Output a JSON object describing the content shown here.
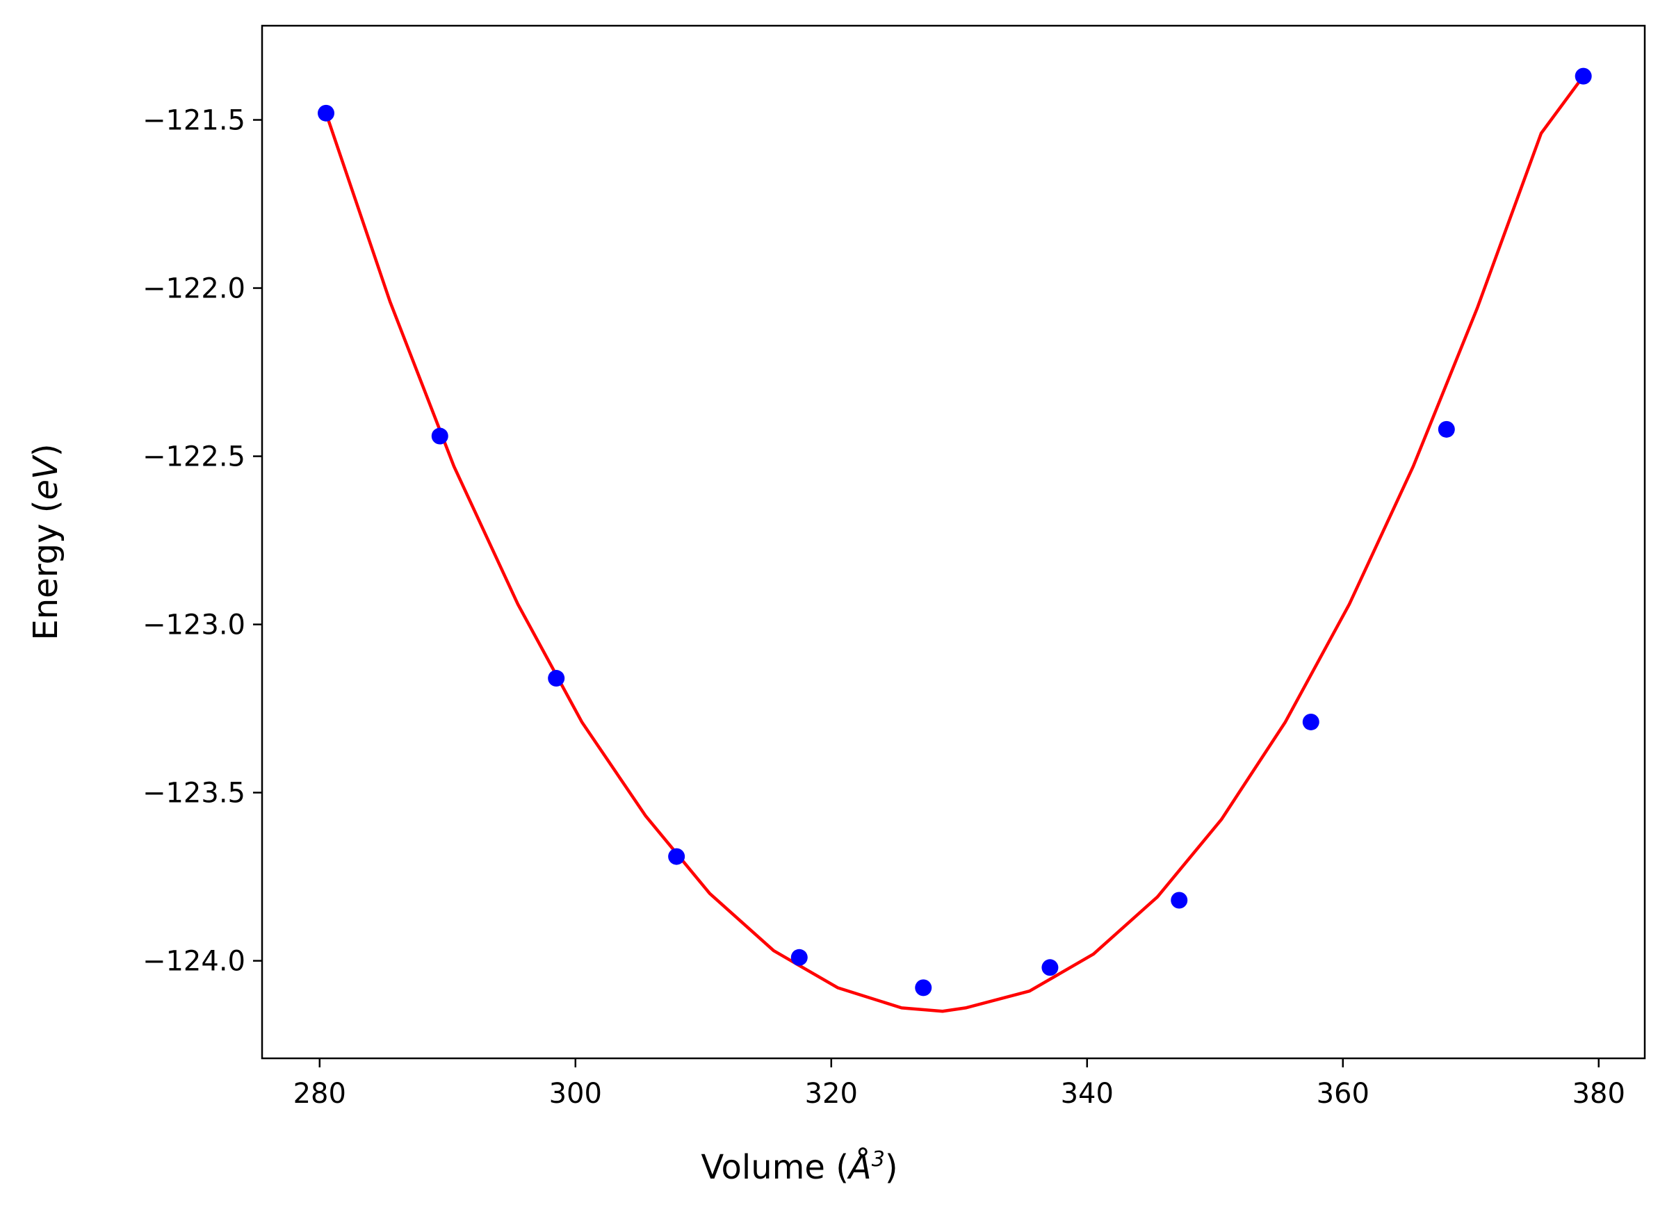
{
  "chart_data": {
    "type": "scatter",
    "title": "",
    "xlabel_parts": {
      "prefix": "Volume (",
      "symbol": "Å",
      "exponent": "3",
      "suffix": ")"
    },
    "ylabel_parts": {
      "prefix": "Energy (",
      "symbol": "eV",
      "suffix": ")"
    },
    "xlim": [
      275.5,
      383.6
    ],
    "ylim": [
      -124.29,
      -121.22
    ],
    "xticks": [
      280,
      300,
      320,
      340,
      360,
      380
    ],
    "xtick_labels": [
      "280",
      "300",
      "320",
      "340",
      "360",
      "380"
    ],
    "yticks": [
      -121.5,
      -122.0,
      -122.5,
      -123.0,
      -123.5,
      -124.0
    ],
    "ytick_labels": [
      "−121.5",
      "−122.0",
      "−122.5",
      "−123.0",
      "−123.5",
      "−124.0"
    ],
    "grid": false,
    "series": [
      {
        "kind": "points",
        "color": "#0000ff",
        "x": [
          280.5,
          289.4,
          298.5,
          307.9,
          317.5,
          327.2,
          337.1,
          347.2,
          357.5,
          368.1,
          378.8
        ],
        "y": [
          -121.48,
          -122.44,
          -123.16,
          -123.69,
          -123.99,
          -124.08,
          -124.02,
          -123.82,
          -123.29,
          -122.42,
          -121.37
        ]
      },
      {
        "kind": "fit-line",
        "color": "#ff0000",
        "x": [
          280.5,
          285.5,
          290.5,
          295.5,
          300.5,
          305.5,
          310.5,
          315.5,
          320.5,
          325.5,
          328.7,
          330.5,
          335.5,
          340.5,
          345.5,
          350.5,
          355.5,
          360.5,
          365.5,
          370.5,
          375.5,
          378.8
        ],
        "y": [
          -121.48,
          -122.04,
          -122.53,
          -122.94,
          -123.29,
          -123.57,
          -123.8,
          -123.97,
          -124.08,
          -124.14,
          -124.15,
          -124.14,
          -124.09,
          -123.98,
          -123.81,
          -123.58,
          -123.29,
          -122.94,
          -122.53,
          -122.06,
          -121.54,
          -121.37
        ]
      }
    ]
  }
}
